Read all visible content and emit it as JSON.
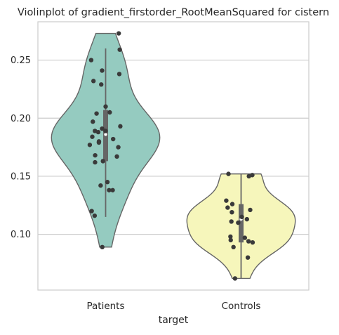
{
  "chart_data": {
    "type": "violin",
    "title": "Violinplot of gradient_firstorder_RootMeanSquared for cistern",
    "xlabel": "target",
    "ylabel": "",
    "categories": [
      "Patients",
      "Controls"
    ],
    "ylim": [
      0.052,
      0.283
    ],
    "yticks": [
      0.1,
      0.15,
      0.2,
      0.25
    ],
    "ytick_labels": [
      "0.10",
      "0.15",
      "0.20",
      "0.25"
    ],
    "grid": "horizontal",
    "legend": "none",
    "colors": {
      "Patients": "#95cbc0",
      "Controls": "#f6f6bb"
    },
    "series": [
      {
        "category": "Patients",
        "violin_extent": [
          0.089,
          0.273
        ],
        "box": {
          "whisker_low": 0.115,
          "q1": 0.163,
          "median": 0.186,
          "q3": 0.207,
          "whisker_high": 0.26
        },
        "points": [
          0.273,
          0.259,
          0.25,
          0.241,
          0.238,
          0.232,
          0.229,
          0.21,
          0.205,
          0.204,
          0.197,
          0.193,
          0.191,
          0.189,
          0.189,
          0.188,
          0.184,
          0.182,
          0.18,
          0.179,
          0.177,
          0.175,
          0.168,
          0.167,
          0.163,
          0.162,
          0.145,
          0.142,
          0.138,
          0.138,
          0.12,
          0.116,
          0.089
        ]
      },
      {
        "category": "Controls",
        "violin_extent": [
          0.062,
          0.152
        ],
        "box": {
          "whisker_low": 0.062,
          "q1": 0.093,
          "median": 0.113,
          "q3": 0.126,
          "whisker_high": 0.152
        },
        "points": [
          0.152,
          0.151,
          0.15,
          0.129,
          0.126,
          0.123,
          0.121,
          0.119,
          0.115,
          0.113,
          0.111,
          0.11,
          0.098,
          0.097,
          0.095,
          0.094,
          0.093,
          0.089,
          0.08,
          0.062
        ]
      }
    ]
  }
}
